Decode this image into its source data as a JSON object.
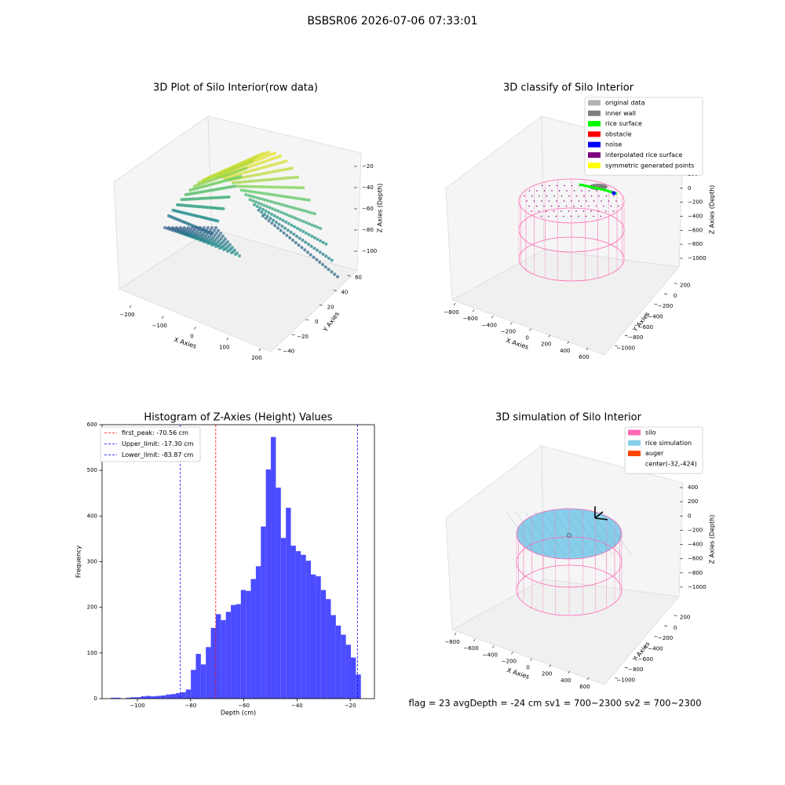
{
  "title": "BSBSR06 2026-07-06 07:33:01",
  "chart_data": [
    {
      "type": "scatter3d",
      "title": "3D Plot of Silo Interior(row data)",
      "xlabel": "X Axies",
      "ylabel": "Y Axies",
      "zlabel": "Z Axies (Depth)",
      "xlim": [
        -240,
        240
      ],
      "ylim": [
        -50,
        65
      ],
      "zlim": [
        -110,
        -10
      ],
      "xticks": [
        {
          "value": -200,
          "label": "−200"
        },
        {
          "value": -100,
          "label": "−100"
        },
        0,
        100,
        200
      ],
      "yticks": [
        {
          "value": -40,
          "label": "−40"
        },
        {
          "value": -20,
          "label": "−20"
        },
        0,
        20,
        40,
        60
      ],
      "zticks": [
        {
          "value": -100,
          "label": "−100"
        },
        {
          "value": -80,
          "label": "−80"
        },
        {
          "value": -60,
          "label": "−60"
        },
        {
          "value": -40,
          "label": "−40"
        },
        {
          "value": -20,
          "label": "−20"
        }
      ]
    },
    {
      "type": "scatter3d",
      "title": "3D classify of Silo Interior",
      "xlabel": "X Axies",
      "ylabel": "Y Axies",
      "zlabel": "Z Axies (Depth)",
      "xlim": [
        -900,
        700
      ],
      "ylim": [
        -1100,
        300
      ],
      "zlim": [
        -1100,
        300
      ],
      "xticks": [
        {
          "value": -800,
          "label": "−800"
        },
        {
          "value": -600,
          "label": "−600"
        },
        {
          "value": -400,
          "label": "−400"
        },
        {
          "value": -200,
          "label": "−200"
        },
        0,
        200,
        400,
        600
      ],
      "yticks": [
        {
          "value": -1000,
          "label": "−1000"
        },
        {
          "value": -800,
          "label": "−800"
        },
        {
          "value": -600,
          "label": "−600"
        },
        {
          "value": -400,
          "label": "−400"
        },
        {
          "value": -200,
          "label": "−200"
        },
        0,
        200
      ],
      "zticks": [
        {
          "value": -1000,
          "label": "−1000"
        },
        {
          "value": -800,
          "label": "−800"
        },
        {
          "value": -600,
          "label": "−600"
        },
        {
          "value": -400,
          "label": "−400"
        },
        {
          "value": -200,
          "label": "−200"
        },
        0,
        200
      ],
      "legend_position": "upper right",
      "legend": [
        {
          "name": "original data",
          "color": "#b3b3b3"
        },
        {
          "name": "inner wall",
          "color": "#808080"
        },
        {
          "name": "rice surface",
          "color": "#00ff00"
        },
        {
          "name": "obstacle",
          "color": "#ff0000"
        },
        {
          "name": "noise",
          "color": "#0000ff"
        },
        {
          "name": "interpolated rice surface",
          "color": "#800080"
        },
        {
          "name": "symmetric generated points",
          "color": "#ffff00"
        }
      ]
    },
    {
      "type": "histogram",
      "title": "Histogram of Z-Axies (Height) Values",
      "xlabel": "Depth (cm)",
      "ylabel": "Frequency",
      "color": "#4b4bff",
      "bins": [
        -110.0,
        -108.12,
        -106.24,
        -104.36,
        -102.48,
        -100.6,
        -98.72,
        -96.84,
        -94.96,
        -93.08,
        -91.2,
        -89.32,
        -87.44,
        -85.56,
        -83.68,
        -81.8,
        -79.92,
        -78.04,
        -76.16,
        -74.28,
        -72.4,
        -70.52,
        -68.64,
        -66.76,
        -64.88,
        -63.0,
        -61.12,
        -59.24,
        -57.36,
        -55.48,
        -53.6,
        -51.72,
        -49.84,
        -47.96,
        -46.08,
        -44.2,
        -42.32,
        -40.44,
        -38.56,
        -36.68,
        -34.8,
        -32.92,
        -31.04,
        -29.16,
        -27.28,
        -25.4,
        -23.52,
        -21.64,
        -19.76,
        -17.88,
        -16.0
      ],
      "values": [
        2,
        2,
        0,
        2,
        3,
        3,
        5,
        6,
        5,
        6,
        7,
        9,
        10,
        12,
        14,
        20,
        63,
        98,
        75,
        113,
        155,
        185,
        172,
        190,
        205,
        207,
        238,
        236,
        262,
        290,
        377,
        502,
        573,
        462,
        352,
        418,
        335,
        323,
        315,
        302,
        272,
        268,
        238,
        218,
        183,
        160,
        140,
        118,
        90,
        53
      ],
      "xlim": [
        -113.3,
        -10.9
      ],
      "ylim": [
        0,
        600
      ],
      "xticks": [
        {
          "value": -100,
          "label": "−100"
        },
        {
          "value": -80,
          "label": "−80"
        },
        {
          "value": -60,
          "label": "−60"
        },
        {
          "value": -40,
          "label": "−40"
        },
        {
          "value": -20,
          "label": "−20"
        }
      ],
      "yticks": [
        0,
        100,
        200,
        300,
        400,
        500,
        600
      ],
      "legend_position": "upper left",
      "vlines": [
        {
          "label": "first_peak: -70.56 cm",
          "value": -70.56,
          "color": "#ff0000"
        },
        {
          "label": "Upper_limit: -17.30 cm",
          "value": -17.3,
          "color": "#0000ff"
        },
        {
          "label": "Lower_limit: -83.87 cm",
          "value": -83.87,
          "color": "#0000ff"
        }
      ]
    },
    {
      "type": "scatter3d",
      "title": "3D simulation of Silo Interior",
      "xlabel": "X Axies",
      "ylabel": "Y Axies",
      "zlabel": "Z Axies (Depth)",
      "xlim": [
        -900,
        700
      ],
      "ylim": [
        -1100,
        300
      ],
      "zlim": [
        -1100,
        500
      ],
      "xticks": [
        {
          "value": -800,
          "label": "−800"
        },
        {
          "value": -600,
          "label": "−600"
        },
        {
          "value": -400,
          "label": "−400"
        },
        {
          "value": -200,
          "label": "−200"
        },
        0,
        200,
        400,
        600
      ],
      "yticks": [
        {
          "value": -1000,
          "label": "−1000"
        },
        {
          "value": -800,
          "label": "−800"
        },
        {
          "value": -600,
          "label": "−600"
        },
        {
          "value": -400,
          "label": "−400"
        },
        {
          "value": -200,
          "label": "−200"
        },
        0,
        200
      ],
      "zticks": [
        {
          "value": -1000,
          "label": "−1000"
        },
        {
          "value": -800,
          "label": "−800"
        },
        {
          "value": -600,
          "label": "−600"
        },
        {
          "value": -400,
          "label": "−400"
        },
        {
          "value": -200,
          "label": "−200"
        },
        0,
        200,
        400
      ],
      "legend_position": "upper right",
      "legend": [
        {
          "name": "silo",
          "color": "#ff69b4"
        },
        {
          "name": "rice simulation",
          "color": "#87ceeb"
        },
        {
          "name": "auger",
          "color": "#ff4500"
        },
        {
          "name": "center(-32,-424)"
        }
      ],
      "annotation": "flag = 23   avgDepth = -24 cm   sv1 = 700~2300  sv2 = 700~2300"
    }
  ]
}
